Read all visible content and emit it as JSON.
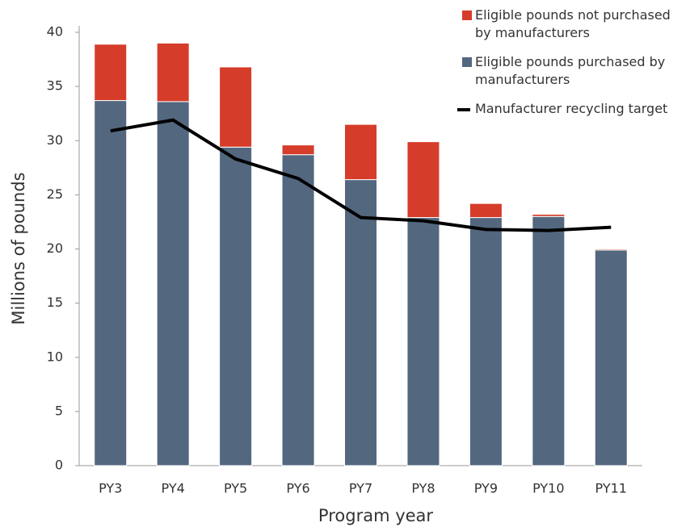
{
  "chart_data": {
    "type": "bar",
    "stacked": true,
    "x_label": "Program year",
    "y_label": "Millions of pounds",
    "categories": [
      "PY3",
      "PY4",
      "PY5",
      "PY6",
      "PY7",
      "PY8",
      "PY9",
      "PY10",
      "PY11"
    ],
    "series": [
      {
        "name": "Eligible pounds purchased by manufacturers",
        "color": "#53677f",
        "type": "bar",
        "values": [
          33.7,
          33.6,
          29.4,
          28.7,
          26.4,
          22.9,
          22.9,
          23.0,
          19.9
        ]
      },
      {
        "name": "Eligible pounds not purchased by manufacturers",
        "color": "#d63c2a",
        "type": "bar",
        "values": [
          5.2,
          5.4,
          7.4,
          0.9,
          5.1,
          7.0,
          1.3,
          0.2,
          0.1
        ]
      },
      {
        "name": "Manufacturer recycling target",
        "color": "#000000",
        "type": "line",
        "values": [
          30.9,
          31.9,
          28.3,
          26.5,
          22.9,
          22.6,
          21.8,
          21.7,
          22.0
        ]
      }
    ],
    "ylim": [
      0,
      40
    ],
    "yticks": [
      0,
      5,
      10,
      15,
      20,
      25,
      30,
      35,
      40
    ],
    "grid": false,
    "legend": "top-right"
  }
}
